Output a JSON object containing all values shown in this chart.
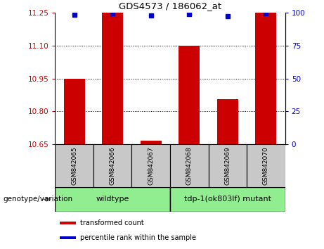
{
  "title": "GDS4573 / 186062_at",
  "samples": [
    "GSM842065",
    "GSM842066",
    "GSM842067",
    "GSM842068",
    "GSM842069",
    "GSM842070"
  ],
  "red_values": [
    10.95,
    11.25,
    10.668,
    11.1,
    10.855,
    11.25
  ],
  "blue_values": [
    98.5,
    99.5,
    97.5,
    99.0,
    97.0,
    99.5
  ],
  "ylim_left": [
    10.65,
    11.25
  ],
  "ylim_right": [
    0,
    100
  ],
  "yticks_left": [
    10.65,
    10.8,
    10.95,
    11.1,
    11.25
  ],
  "yticks_right": [
    0,
    25,
    50,
    75,
    100
  ],
  "groups": [
    {
      "label": "wildtype",
      "samples": [
        0,
        1,
        2
      ],
      "color": "#90EE90"
    },
    {
      "label": "tdp-1(ok803lf) mutant",
      "samples": [
        3,
        4,
        5
      ],
      "color": "#90EE90"
    }
  ],
  "bar_color": "#CC0000",
  "dot_color": "#0000CC",
  "bar_width": 0.55,
  "baseline": 10.65,
  "grid_color": "black",
  "tick_label_color_left": "#CC0000",
  "tick_label_color_right": "#0000CC",
  "legend_red_label": "transformed count",
  "legend_blue_label": "percentile rank within the sample",
  "genotype_label": "genotype/variation",
  "group_bg_color": "#c8c8c8",
  "green_color": "#90EE90"
}
